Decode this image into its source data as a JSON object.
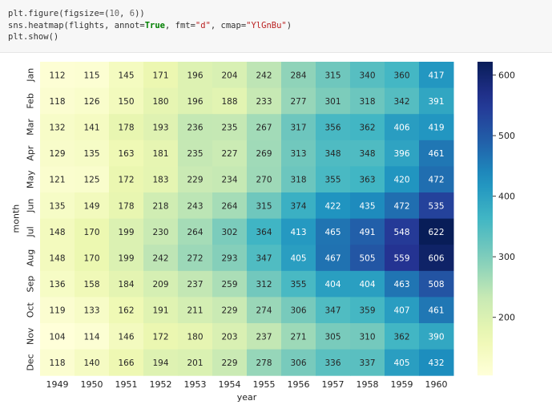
{
  "code": {
    "line1_prefix": "plt.figure(figsize=(",
    "line1_num1": "10",
    "line1_sep": ", ",
    "line1_num2": "6",
    "line1_suffix": "))",
    "line2_prefix": "sns.heatmap(flights, annot=",
    "line2_true": "True",
    "line2_mid1": ", fmt=",
    "line2_fmt": "\"d\"",
    "line2_mid2": ", cmap=",
    "line2_cmap": "\"YlGnBu\"",
    "line2_suffix": ")",
    "line3": "plt.show()"
  },
  "chart_data": {
    "type": "heatmap",
    "xlabel": "year",
    "ylabel": "month",
    "x": [
      "1949",
      "1950",
      "1951",
      "1952",
      "1953",
      "1954",
      "1955",
      "1956",
      "1957",
      "1958",
      "1959",
      "1960"
    ],
    "y": [
      "Jan",
      "Feb",
      "Mar",
      "Apr",
      "May",
      "Jun",
      "Jul",
      "Aug",
      "Sep",
      "Oct",
      "Nov",
      "Dec"
    ],
    "values": [
      [
        112,
        115,
        145,
        171,
        196,
        204,
        242,
        284,
        315,
        340,
        360,
        417
      ],
      [
        118,
        126,
        150,
        180,
        196,
        188,
        233,
        277,
        301,
        318,
        342,
        391
      ],
      [
        132,
        141,
        178,
        193,
        236,
        235,
        267,
        317,
        356,
        362,
        406,
        419
      ],
      [
        129,
        135,
        163,
        181,
        235,
        227,
        269,
        313,
        348,
        348,
        396,
        461
      ],
      [
        121,
        125,
        172,
        183,
        229,
        234,
        270,
        318,
        355,
        363,
        420,
        472
      ],
      [
        135,
        149,
        178,
        218,
        243,
        264,
        315,
        374,
        422,
        435,
        472,
        535
      ],
      [
        148,
        170,
        199,
        230,
        264,
        302,
        364,
        413,
        465,
        491,
        548,
        622
      ],
      [
        148,
        170,
        199,
        242,
        272,
        293,
        347,
        405,
        467,
        505,
        559,
        606
      ],
      [
        136,
        158,
        184,
        209,
        237,
        259,
        312,
        355,
        404,
        404,
        463,
        508
      ],
      [
        119,
        133,
        162,
        191,
        211,
        229,
        274,
        306,
        347,
        359,
        407,
        461
      ],
      [
        104,
        114,
        146,
        172,
        180,
        203,
        237,
        271,
        305,
        310,
        362,
        390
      ],
      [
        118,
        140,
        166,
        194,
        201,
        229,
        278,
        306,
        336,
        337,
        405,
        432
      ]
    ],
    "colormap": "YlGnBu",
    "vmin": 104,
    "vmax": 622,
    "colorbar_ticks": [
      200,
      300,
      400,
      500,
      600
    ],
    "annot": true
  }
}
